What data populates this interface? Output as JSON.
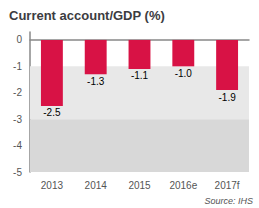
{
  "chart_data": {
    "type": "bar",
    "title": "Current account/GDP (%)",
    "categories": [
      "2013",
      "2014",
      "2015",
      "2016e",
      "2017f"
    ],
    "values": [
      -2.5,
      -1.3,
      -1.1,
      -1.0,
      -1.9
    ],
    "value_labels": [
      "-2.5",
      "-1.3",
      "-1.1",
      "-1.0",
      "-1.9"
    ],
    "data_labels": true,
    "color": "#d81245",
    "ylim": [
      -5,
      0.3
    ],
    "yticks": [
      0,
      -1,
      -2,
      -3,
      -4,
      -5
    ],
    "bands": [
      {
        "from": -3,
        "to": -1,
        "color": "#e8e8e8"
      },
      {
        "from": -5,
        "to": -3,
        "color": "#d8d8d8"
      }
    ],
    "annotations": [
      "Source: IHS"
    ],
    "grid": false
  }
}
